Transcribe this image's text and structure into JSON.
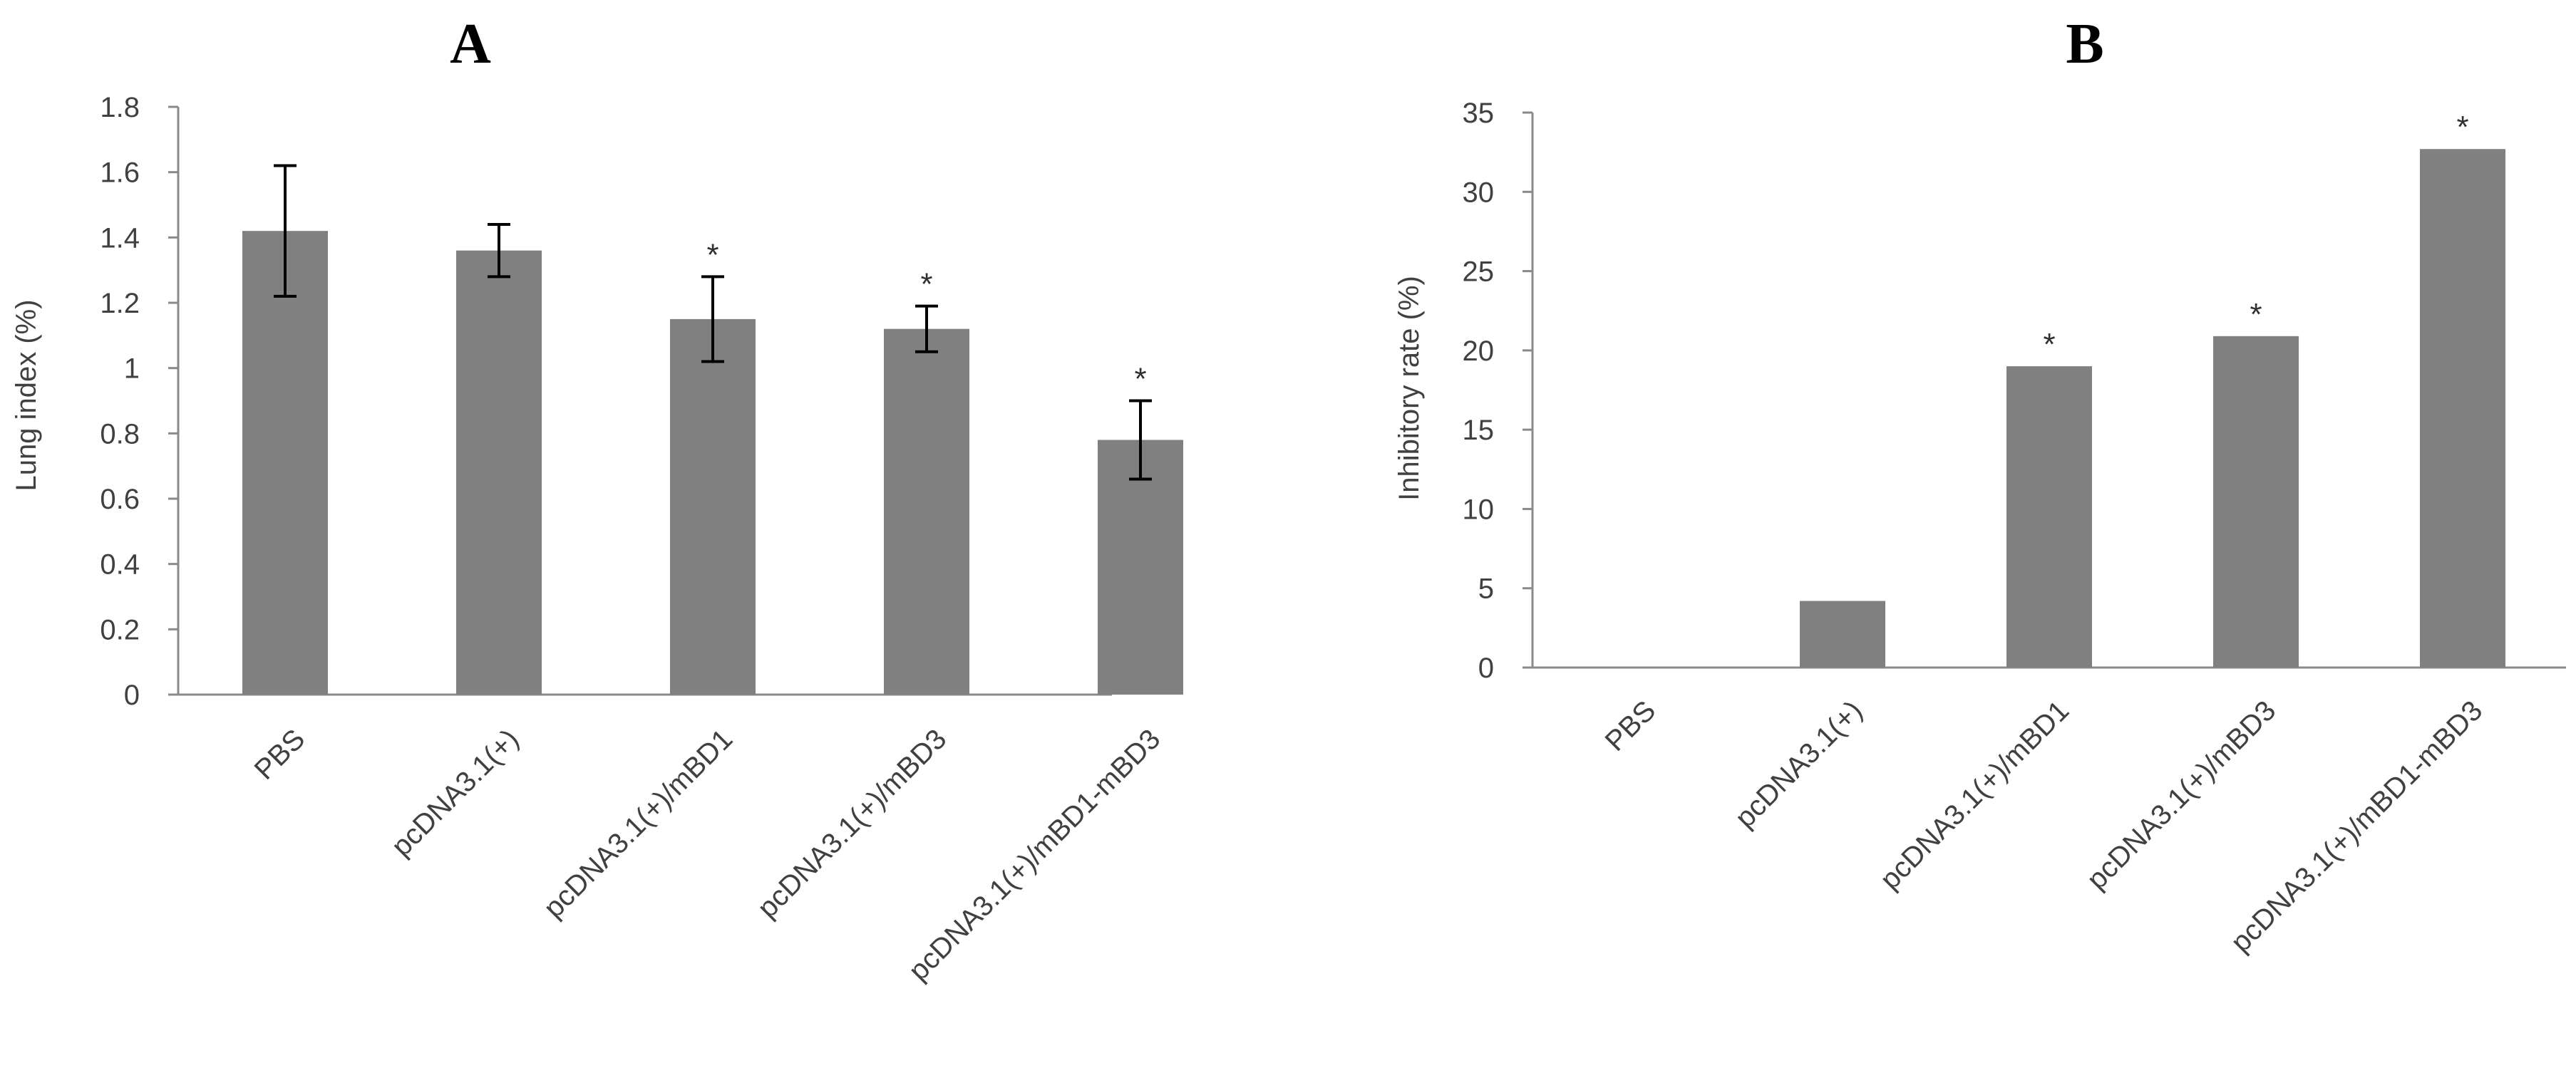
{
  "colors": {
    "bar": "#808080",
    "axis": "#8a8a8a",
    "text": "#404040"
  },
  "chart_data": [
    {
      "panel": "A",
      "type": "bar",
      "ylabel": "Lung index (%)",
      "ylim": [
        0,
        1.8
      ],
      "yticks": [
        "0",
        "0.2",
        "0.4",
        "0.6",
        "0.8",
        "1",
        "1.2",
        "1.4",
        "1.6",
        "1.8"
      ],
      "categories": [
        "PBS",
        "pcDNA3.1(+)",
        "pcDNA3.1(+)/mBD1",
        "pcDNA3.1(+)/mBD3",
        "pcDNA3.1(+)/mBD1-mBD3"
      ],
      "values": [
        1.42,
        1.36,
        1.15,
        1.12,
        0.78
      ],
      "errors": [
        0.2,
        0.08,
        0.13,
        0.07,
        0.12
      ],
      "significance": [
        "",
        "",
        "*",
        "*",
        "*"
      ],
      "grid": false
    },
    {
      "panel": "B",
      "type": "bar",
      "ylabel": "Inhibitory rate (%)",
      "ylim": [
        0,
        35
      ],
      "yticks": [
        "0",
        "5",
        "10",
        "15",
        "20",
        "25",
        "30",
        "35"
      ],
      "categories": [
        "PBS",
        "pcDNA3.1(+)",
        "pcDNA3.1(+)/mBD1",
        "pcDNA3.1(+)/mBD3",
        "pcDNA3.1(+)/mBD1-mBD3"
      ],
      "values": [
        0,
        4.2,
        19,
        20.9,
        32.7
      ],
      "significance": [
        "",
        "",
        "*",
        "*",
        "*"
      ],
      "grid": false
    }
  ]
}
